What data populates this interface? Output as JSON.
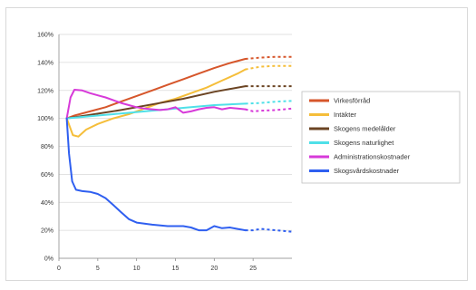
{
  "chart_data": {
    "type": "line",
    "xlim": [
      0,
      30
    ],
    "ylim": [
      0,
      160
    ],
    "x_ticks": [
      "0",
      "5",
      "10",
      "15",
      "20",
      "25"
    ],
    "y_ticks": [
      "0%",
      "20%",
      "40%",
      "60%",
      "80%",
      "100%",
      "120%",
      "140%",
      "160%"
    ],
    "grid": "horizontal",
    "legend_position": "right",
    "solid_until_x": 24,
    "projection_style": "dashed",
    "series": [
      {
        "name": "Virkesförråd",
        "color": "#d6562b",
        "points": [
          [
            1,
            100
          ],
          [
            2,
            102
          ],
          [
            4,
            105
          ],
          [
            6,
            108
          ],
          [
            8,
            112
          ],
          [
            10,
            116
          ],
          [
            12,
            120
          ],
          [
            14,
            124
          ],
          [
            16,
            128
          ],
          [
            18,
            132
          ],
          [
            20,
            136
          ],
          [
            22,
            139.5
          ],
          [
            24,
            142.5
          ],
          [
            26,
            143.5
          ],
          [
            28,
            144
          ],
          [
            30,
            144
          ]
        ]
      },
      {
        "name": "Intäkter",
        "color": "#f5be3a",
        "points": [
          [
            1,
            100
          ],
          [
            1.8,
            88
          ],
          [
            2.5,
            87
          ],
          [
            3.5,
            92
          ],
          [
            5,
            96
          ],
          [
            7,
            100
          ],
          [
            9,
            103
          ],
          [
            11,
            107
          ],
          [
            13,
            111
          ],
          [
            15,
            114
          ],
          [
            17,
            118
          ],
          [
            19,
            122
          ],
          [
            21,
            127
          ],
          [
            23,
            132
          ],
          [
            24,
            135
          ],
          [
            26,
            137
          ],
          [
            28,
            137.5
          ],
          [
            30,
            137.5
          ]
        ]
      },
      {
        "name": "Skogens medelålder",
        "color": "#6b4423",
        "points": [
          [
            1,
            100
          ],
          [
            4,
            102.5
          ],
          [
            8,
            106
          ],
          [
            12,
            110
          ],
          [
            16,
            114
          ],
          [
            20,
            119
          ],
          [
            24,
            123
          ],
          [
            26,
            123
          ],
          [
            28,
            123
          ],
          [
            30,
            123
          ]
        ]
      },
      {
        "name": "Skogens naturlighet",
        "color": "#4fe0e8",
        "points": [
          [
            1,
            100
          ],
          [
            4,
            101.5
          ],
          [
            8,
            103.5
          ],
          [
            12,
            105.5
          ],
          [
            16,
            107.5
          ],
          [
            20,
            109.5
          ],
          [
            24,
            110.5
          ],
          [
            26,
            111
          ],
          [
            28,
            112
          ],
          [
            30,
            112.5
          ]
        ]
      },
      {
        "name": "Administrationskostnader",
        "color": "#d73ad9",
        "points": [
          [
            1,
            100
          ],
          [
            1.5,
            115
          ],
          [
            2,
            120.5
          ],
          [
            3,
            120
          ],
          [
            4,
            118
          ],
          [
            5,
            116.5
          ],
          [
            6,
            115
          ],
          [
            7,
            113
          ],
          [
            8,
            111
          ],
          [
            9,
            109.5
          ],
          [
            10,
            108
          ],
          [
            11,
            107
          ],
          [
            12,
            106.5
          ],
          [
            13,
            106
          ],
          [
            14,
            106.5
          ],
          [
            15,
            108
          ],
          [
            16,
            104
          ],
          [
            17,
            105
          ],
          [
            18,
            106.5
          ],
          [
            19,
            107.5
          ],
          [
            20,
            108
          ],
          [
            21,
            106.5
          ],
          [
            22,
            107.5
          ],
          [
            23,
            107
          ],
          [
            24,
            106.5
          ],
          [
            25,
            105
          ],
          [
            26,
            105.5
          ],
          [
            28,
            106
          ],
          [
            30,
            107
          ]
        ]
      },
      {
        "name": "Skogsvårdskostnader",
        "color": "#2f5ff0",
        "points": [
          [
            1,
            100
          ],
          [
            1.3,
            75
          ],
          [
            1.7,
            55
          ],
          [
            2.2,
            49
          ],
          [
            3,
            48
          ],
          [
            4,
            47.5
          ],
          [
            5,
            46
          ],
          [
            6,
            43
          ],
          [
            7,
            38
          ],
          [
            8,
            33
          ],
          [
            9,
            28
          ],
          [
            10,
            25.5
          ],
          [
            12,
            24
          ],
          [
            14,
            23
          ],
          [
            16,
            23
          ],
          [
            17,
            22
          ],
          [
            18,
            20
          ],
          [
            19,
            20
          ],
          [
            20,
            23
          ],
          [
            21,
            21.5
          ],
          [
            22,
            22
          ],
          [
            23,
            21
          ],
          [
            24,
            20
          ],
          [
            25,
            20
          ],
          [
            26,
            21
          ],
          [
            28,
            20
          ],
          [
            30,
            19
          ]
        ]
      }
    ]
  }
}
